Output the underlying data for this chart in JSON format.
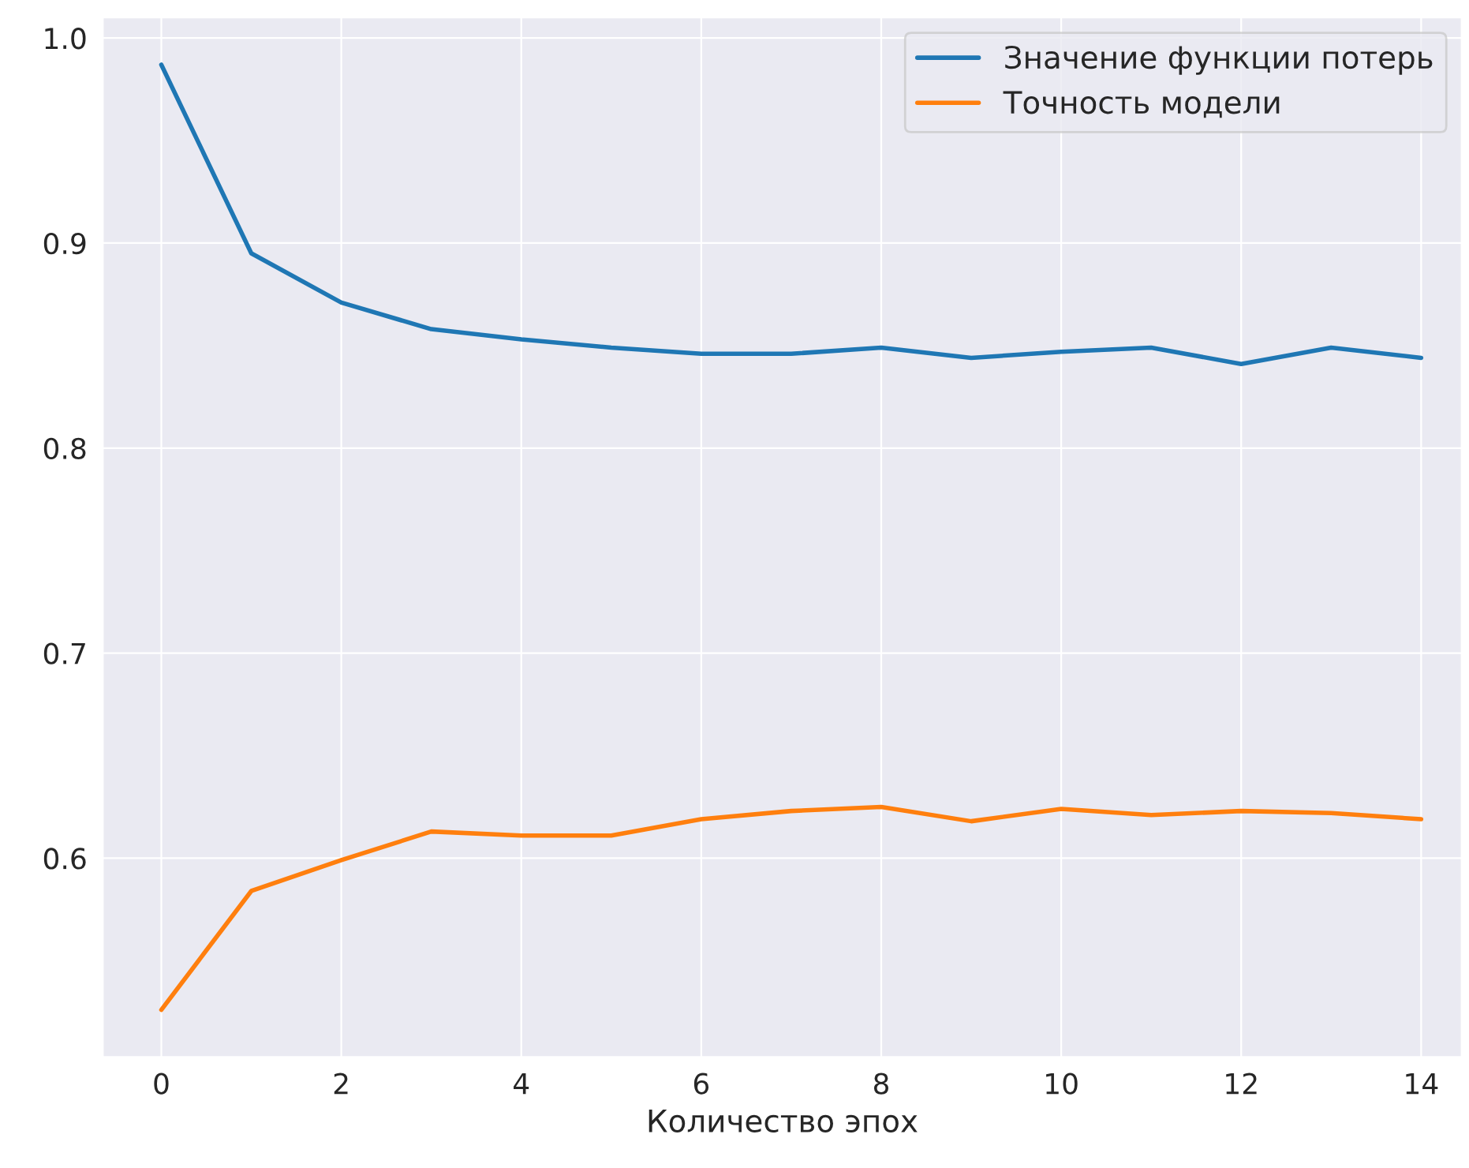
{
  "chart_data": {
    "type": "line",
    "xlabel": "Количество эпох",
    "x": [
      0,
      1,
      2,
      3,
      4,
      5,
      6,
      7,
      8,
      9,
      10,
      11,
      12,
      13,
      14
    ],
    "series": [
      {
        "name": "Значение функции потерь",
        "color": "#1f77b4",
        "values": [
          0.987,
          0.895,
          0.871,
          0.858,
          0.853,
          0.849,
          0.846,
          0.846,
          0.849,
          0.844,
          0.847,
          0.849,
          0.841,
          0.849,
          0.844
        ]
      },
      {
        "name": "Точность модели",
        "color": "#ff7f0e",
        "values": [
          0.526,
          0.584,
          0.599,
          0.613,
          0.611,
          0.611,
          0.619,
          0.623,
          0.625,
          0.618,
          0.624,
          0.621,
          0.623,
          0.622,
          0.619
        ]
      }
    ],
    "xlim": [
      -0.65,
      14.45
    ],
    "ylim": [
      0.503,
      1.01
    ],
    "xticks": [
      0,
      2,
      4,
      6,
      8,
      10,
      12,
      14
    ],
    "yticks": [
      0.6,
      0.7,
      0.8,
      0.9,
      {
        "value": 1.0,
        "label": "1.0"
      }
    ],
    "grid": true,
    "legend": "top right",
    "marker": "none",
    "line_style": "solid"
  }
}
